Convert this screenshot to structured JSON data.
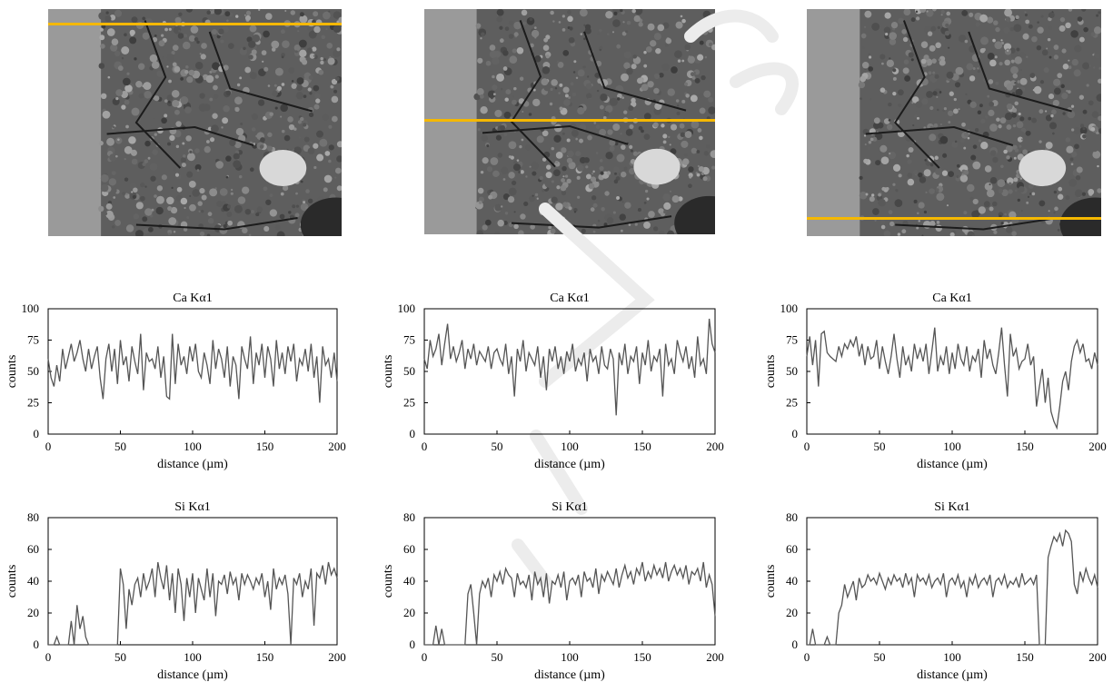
{
  "colors": {
    "line": "#555555",
    "overlay": "#f5b800",
    "axis": "#000000"
  },
  "panels": [
    {
      "sem_image_name": "sem-micrograph-left",
      "line_position": "top"
    },
    {
      "sem_image_name": "sem-micrograph-center",
      "line_position": "middle"
    },
    {
      "sem_image_name": "sem-micrograph-right",
      "line_position": "bottom"
    }
  ],
  "chart_data": [
    {
      "type": "line",
      "title": "Ca Kα1",
      "xlabel": "distance (µm)",
      "ylabel": "counts",
      "xlim": [
        0,
        200
      ],
      "ylim": [
        0,
        100
      ],
      "xticks": [
        0,
        50,
        100,
        150,
        200
      ],
      "yticks": [
        0,
        25,
        50,
        75,
        100
      ],
      "x": [
        0,
        2,
        4,
        6,
        8,
        10,
        12,
        14,
        16,
        18,
        20,
        22,
        24,
        26,
        28,
        30,
        32,
        34,
        36,
        38,
        40,
        42,
        44,
        46,
        48,
        50,
        52,
        54,
        56,
        58,
        60,
        62,
        64,
        66,
        68,
        70,
        72,
        74,
        76,
        78,
        80,
        82,
        84,
        86,
        88,
        90,
        92,
        94,
        96,
        98,
        100,
        102,
        104,
        106,
        108,
        110,
        112,
        114,
        116,
        118,
        120,
        122,
        124,
        126,
        128,
        130,
        132,
        134,
        136,
        138,
        140,
        142,
        144,
        146,
        148,
        150,
        152,
        154,
        156,
        158,
        160,
        162,
        164,
        166,
        168,
        170,
        172,
        174,
        176,
        178,
        180,
        182,
        184,
        186,
        188,
        190,
        192,
        194,
        196,
        198,
        200
      ],
      "y": [
        60,
        45,
        38,
        55,
        42,
        68,
        52,
        62,
        72,
        58,
        65,
        75,
        60,
        50,
        68,
        52,
        62,
        70,
        45,
        28,
        60,
        72,
        50,
        68,
        40,
        75,
        55,
        62,
        42,
        70,
        58,
        48,
        80,
        35,
        65,
        58,
        60,
        52,
        70,
        45,
        62,
        30,
        28,
        80,
        40,
        72,
        55,
        62,
        48,
        70,
        58,
        72,
        50,
        45,
        65,
        55,
        40,
        75,
        52,
        68,
        60,
        45,
        70,
        38,
        62,
        55,
        28,
        70,
        60,
        52,
        78,
        40,
        65,
        55,
        72,
        45,
        70,
        60,
        38,
        75,
        52,
        65,
        48,
        70,
        58,
        72,
        42,
        60,
        55,
        68,
        50,
        72,
        45,
        62,
        25,
        70,
        55,
        60,
        45,
        65,
        42
      ]
    },
    {
      "type": "line",
      "title": "Ca Kα1",
      "xlabel": "distance (µm)",
      "ylabel": "counts",
      "xlim": [
        0,
        200
      ],
      "ylim": [
        0,
        100
      ],
      "xticks": [
        0,
        50,
        100,
        150,
        200
      ],
      "yticks": [
        0,
        25,
        50,
        75,
        100
      ],
      "x": [
        0,
        2,
        4,
        6,
        8,
        10,
        12,
        14,
        16,
        18,
        20,
        22,
        24,
        26,
        28,
        30,
        32,
        34,
        36,
        38,
        40,
        42,
        44,
        46,
        48,
        50,
        52,
        54,
        56,
        58,
        60,
        62,
        64,
        66,
        68,
        70,
        72,
        74,
        76,
        78,
        80,
        82,
        84,
        86,
        88,
        90,
        92,
        94,
        96,
        98,
        100,
        102,
        104,
        106,
        108,
        110,
        112,
        114,
        116,
        118,
        120,
        122,
        124,
        126,
        128,
        130,
        132,
        134,
        136,
        138,
        140,
        142,
        144,
        146,
        148,
        150,
        152,
        154,
        156,
        158,
        160,
        162,
        164,
        166,
        168,
        170,
        172,
        174,
        176,
        178,
        180,
        182,
        184,
        186,
        188,
        190,
        192,
        194,
        196,
        198,
        200
      ],
      "y": [
        60,
        52,
        75,
        62,
        68,
        80,
        55,
        72,
        88,
        60,
        70,
        58,
        65,
        75,
        52,
        68,
        60,
        72,
        55,
        66,
        62,
        58,
        70,
        52,
        65,
        68,
        60,
        55,
        72,
        48,
        62,
        30,
        68,
        58,
        75,
        50,
        65,
        60,
        55,
        70,
        45,
        62,
        35,
        68,
        58,
        70,
        52,
        62,
        48,
        66,
        58,
        72,
        50,
        60,
        55,
        65,
        42,
        68,
        58,
        62,
        48,
        70,
        55,
        52,
        68,
        60,
        15,
        65,
        55,
        72,
        48,
        62,
        58,
        70,
        40,
        65,
        55,
        75,
        50,
        62,
        58,
        68,
        30,
        72,
        55,
        60,
        48,
        75,
        65,
        58,
        70,
        52,
        62,
        45,
        78,
        55,
        60,
        48,
        92,
        72,
        65
      ]
    },
    {
      "type": "line",
      "title": "Ca Kα1",
      "xlabel": "distance (µm)",
      "ylabel": "counts",
      "xlim": [
        0,
        200
      ],
      "ylim": [
        0,
        100
      ],
      "xticks": [
        0,
        50,
        100,
        150,
        200
      ],
      "yticks": [
        0,
        25,
        50,
        75,
        100
      ],
      "x": [
        0,
        2,
        4,
        6,
        8,
        10,
        12,
        14,
        16,
        18,
        20,
        22,
        24,
        26,
        28,
        30,
        32,
        34,
        36,
        38,
        40,
        42,
        44,
        46,
        48,
        50,
        52,
        54,
        56,
        58,
        60,
        62,
        64,
        66,
        68,
        70,
        72,
        74,
        76,
        78,
        80,
        82,
        84,
        86,
        88,
        90,
        92,
        94,
        96,
        98,
        100,
        102,
        104,
        106,
        108,
        110,
        112,
        114,
        116,
        118,
        120,
        122,
        124,
        126,
        128,
        130,
        132,
        134,
        136,
        138,
        140,
        142,
        144,
        146,
        148,
        150,
        152,
        154,
        156,
        158,
        160,
        162,
        164,
        166,
        168,
        170,
        172,
        174,
        176,
        178,
        180,
        182,
        184,
        186,
        188,
        190,
        192,
        194,
        196,
        198,
        200
      ],
      "y": [
        62,
        78,
        55,
        75,
        38,
        80,
        82,
        65,
        62,
        60,
        58,
        70,
        62,
        72,
        68,
        75,
        70,
        78,
        62,
        72,
        55,
        70,
        60,
        62,
        75,
        52,
        70,
        58,
        48,
        62,
        80,
        60,
        45,
        70,
        55,
        62,
        50,
        72,
        60,
        68,
        58,
        72,
        48,
        66,
        85,
        50,
        62,
        55,
        70,
        48,
        65,
        52,
        72,
        60,
        55,
        70,
        50,
        62,
        58,
        68,
        45,
        75,
        60,
        68,
        55,
        48,
        65,
        85,
        55,
        30,
        80,
        62,
        68,
        52,
        58,
        60,
        72,
        55,
        62,
        22,
        38,
        52,
        25,
        45,
        18,
        10,
        5,
        22,
        42,
        50,
        35,
        58,
        70,
        75,
        65,
        72,
        58,
        60,
        52,
        65,
        55
      ]
    },
    {
      "type": "line",
      "title": "Si Kα1",
      "xlabel": "distance (µm)",
      "ylabel": "counts",
      "xlim": [
        0,
        200
      ],
      "ylim": [
        0,
        80
      ],
      "xticks": [
        0,
        50,
        100,
        150,
        200
      ],
      "yticks": [
        0,
        20,
        40,
        60,
        80
      ],
      "x": [
        0,
        2,
        4,
        6,
        8,
        10,
        12,
        14,
        16,
        18,
        20,
        22,
        24,
        26,
        28,
        30,
        32,
        34,
        36,
        38,
        40,
        42,
        44,
        46,
        48,
        50,
        52,
        54,
        56,
        58,
        60,
        62,
        64,
        66,
        68,
        70,
        72,
        74,
        76,
        78,
        80,
        82,
        84,
        86,
        88,
        90,
        92,
        94,
        96,
        98,
        100,
        102,
        104,
        106,
        108,
        110,
        112,
        114,
        116,
        118,
        120,
        122,
        124,
        126,
        128,
        130,
        132,
        134,
        136,
        138,
        140,
        142,
        144,
        146,
        148,
        150,
        152,
        154,
        156,
        158,
        160,
        162,
        164,
        166,
        168,
        170,
        172,
        174,
        176,
        178,
        180,
        182,
        184,
        186,
        188,
        190,
        192,
        194,
        196,
        198,
        200
      ],
      "y": [
        0,
        0,
        0,
        5,
        0,
        0,
        0,
        0,
        15,
        0,
        25,
        10,
        18,
        5,
        0,
        0,
        0,
        0,
        0,
        0,
        0,
        0,
        0,
        0,
        0,
        48,
        38,
        10,
        35,
        25,
        38,
        42,
        30,
        45,
        35,
        40,
        48,
        30,
        52,
        42,
        35,
        50,
        28,
        45,
        20,
        48,
        38,
        15,
        42,
        30,
        45,
        20,
        42,
        35,
        28,
        48,
        30,
        45,
        18,
        40,
        38,
        44,
        32,
        46,
        38,
        42,
        28,
        45,
        38,
        44,
        40,
        35,
        42,
        38,
        45,
        30,
        40,
        22,
        48,
        35,
        42,
        38,
        44,
        32,
        0,
        42,
        38,
        45,
        30,
        40,
        35,
        48,
        12,
        45,
        42,
        50,
        38,
        52,
        44,
        48,
        42
      ]
    },
    {
      "type": "line",
      "title": "Si Kα1",
      "xlabel": "distance (µm)",
      "ylabel": "counts",
      "xlim": [
        0,
        200
      ],
      "ylim": [
        0,
        80
      ],
      "xticks": [
        0,
        50,
        100,
        150,
        200
      ],
      "yticks": [
        0,
        20,
        40,
        60,
        80
      ],
      "x": [
        0,
        2,
        4,
        6,
        8,
        10,
        12,
        14,
        16,
        18,
        20,
        22,
        24,
        26,
        28,
        30,
        32,
        34,
        36,
        38,
        40,
        42,
        44,
        46,
        48,
        50,
        52,
        54,
        56,
        58,
        60,
        62,
        64,
        66,
        68,
        70,
        72,
        74,
        76,
        78,
        80,
        82,
        84,
        86,
        88,
        90,
        92,
        94,
        96,
        98,
        100,
        102,
        104,
        106,
        108,
        110,
        112,
        114,
        116,
        118,
        120,
        122,
        124,
        126,
        128,
        130,
        132,
        134,
        136,
        138,
        140,
        142,
        144,
        146,
        148,
        150,
        152,
        154,
        156,
        158,
        160,
        162,
        164,
        166,
        168,
        170,
        172,
        174,
        176,
        178,
        180,
        182,
        184,
        186,
        188,
        190,
        192,
        194,
        196,
        198,
        200
      ],
      "y": [
        0,
        0,
        0,
        0,
        12,
        0,
        10,
        0,
        0,
        0,
        0,
        0,
        0,
        0,
        0,
        32,
        38,
        20,
        0,
        32,
        40,
        36,
        42,
        30,
        44,
        40,
        46,
        38,
        48,
        44,
        42,
        30,
        45,
        38,
        40,
        36,
        44,
        28,
        46,
        38,
        42,
        30,
        45,
        26,
        40,
        38,
        44,
        36,
        46,
        28,
        40,
        42,
        38,
        44,
        30,
        46,
        40,
        42,
        36,
        48,
        32,
        44,
        40,
        46,
        42,
        38,
        48,
        36,
        44,
        50,
        42,
        46,
        38,
        48,
        44,
        52,
        40,
        46,
        42,
        50,
        44,
        48,
        42,
        52,
        40,
        46,
        50,
        44,
        48,
        42,
        50,
        38,
        46,
        44,
        48,
        40,
        52,
        36,
        44,
        38,
        18
      ]
    },
    {
      "type": "line",
      "title": "Si Kα1",
      "xlabel": "distance (µm)",
      "ylabel": "counts",
      "xlim": [
        0,
        200
      ],
      "ylim": [
        0,
        80
      ],
      "xticks": [
        0,
        50,
        100,
        150,
        200
      ],
      "yticks": [
        0,
        20,
        40,
        60,
        80
      ],
      "x": [
        0,
        2,
        4,
        6,
        8,
        10,
        12,
        14,
        16,
        18,
        20,
        22,
        24,
        26,
        28,
        30,
        32,
        34,
        36,
        38,
        40,
        42,
        44,
        46,
        48,
        50,
        52,
        54,
        56,
        58,
        60,
        62,
        64,
        66,
        68,
        70,
        72,
        74,
        76,
        78,
        80,
        82,
        84,
        86,
        88,
        90,
        92,
        94,
        96,
        98,
        100,
        102,
        104,
        106,
        108,
        110,
        112,
        114,
        116,
        118,
        120,
        122,
        124,
        126,
        128,
        130,
        132,
        134,
        136,
        138,
        140,
        142,
        144,
        146,
        148,
        150,
        152,
        154,
        156,
        158,
        160,
        162,
        164,
        166,
        168,
        170,
        172,
        174,
        176,
        178,
        180,
        182,
        184,
        186,
        188,
        190,
        192,
        194,
        196,
        198,
        200
      ],
      "y": [
        0,
        0,
        10,
        0,
        0,
        0,
        0,
        5,
        0,
        0,
        0,
        20,
        25,
        38,
        30,
        35,
        40,
        28,
        42,
        36,
        38,
        44,
        40,
        42,
        38,
        45,
        40,
        35,
        42,
        38,
        44,
        40,
        42,
        36,
        45,
        38,
        42,
        30,
        44,
        40,
        42,
        38,
        44,
        36,
        40,
        42,
        38,
        45,
        30,
        40,
        42,
        38,
        44,
        36,
        40,
        30,
        42,
        38,
        44,
        36,
        40,
        42,
        38,
        44,
        30,
        40,
        42,
        38,
        44,
        36,
        40,
        38,
        42,
        36,
        45,
        38,
        40,
        42,
        38,
        44,
        0,
        0,
        0,
        55,
        62,
        68,
        65,
        70,
        62,
        72,
        70,
        65,
        38,
        32,
        46,
        40,
        48,
        42,
        38,
        44,
        36
      ]
    }
  ]
}
